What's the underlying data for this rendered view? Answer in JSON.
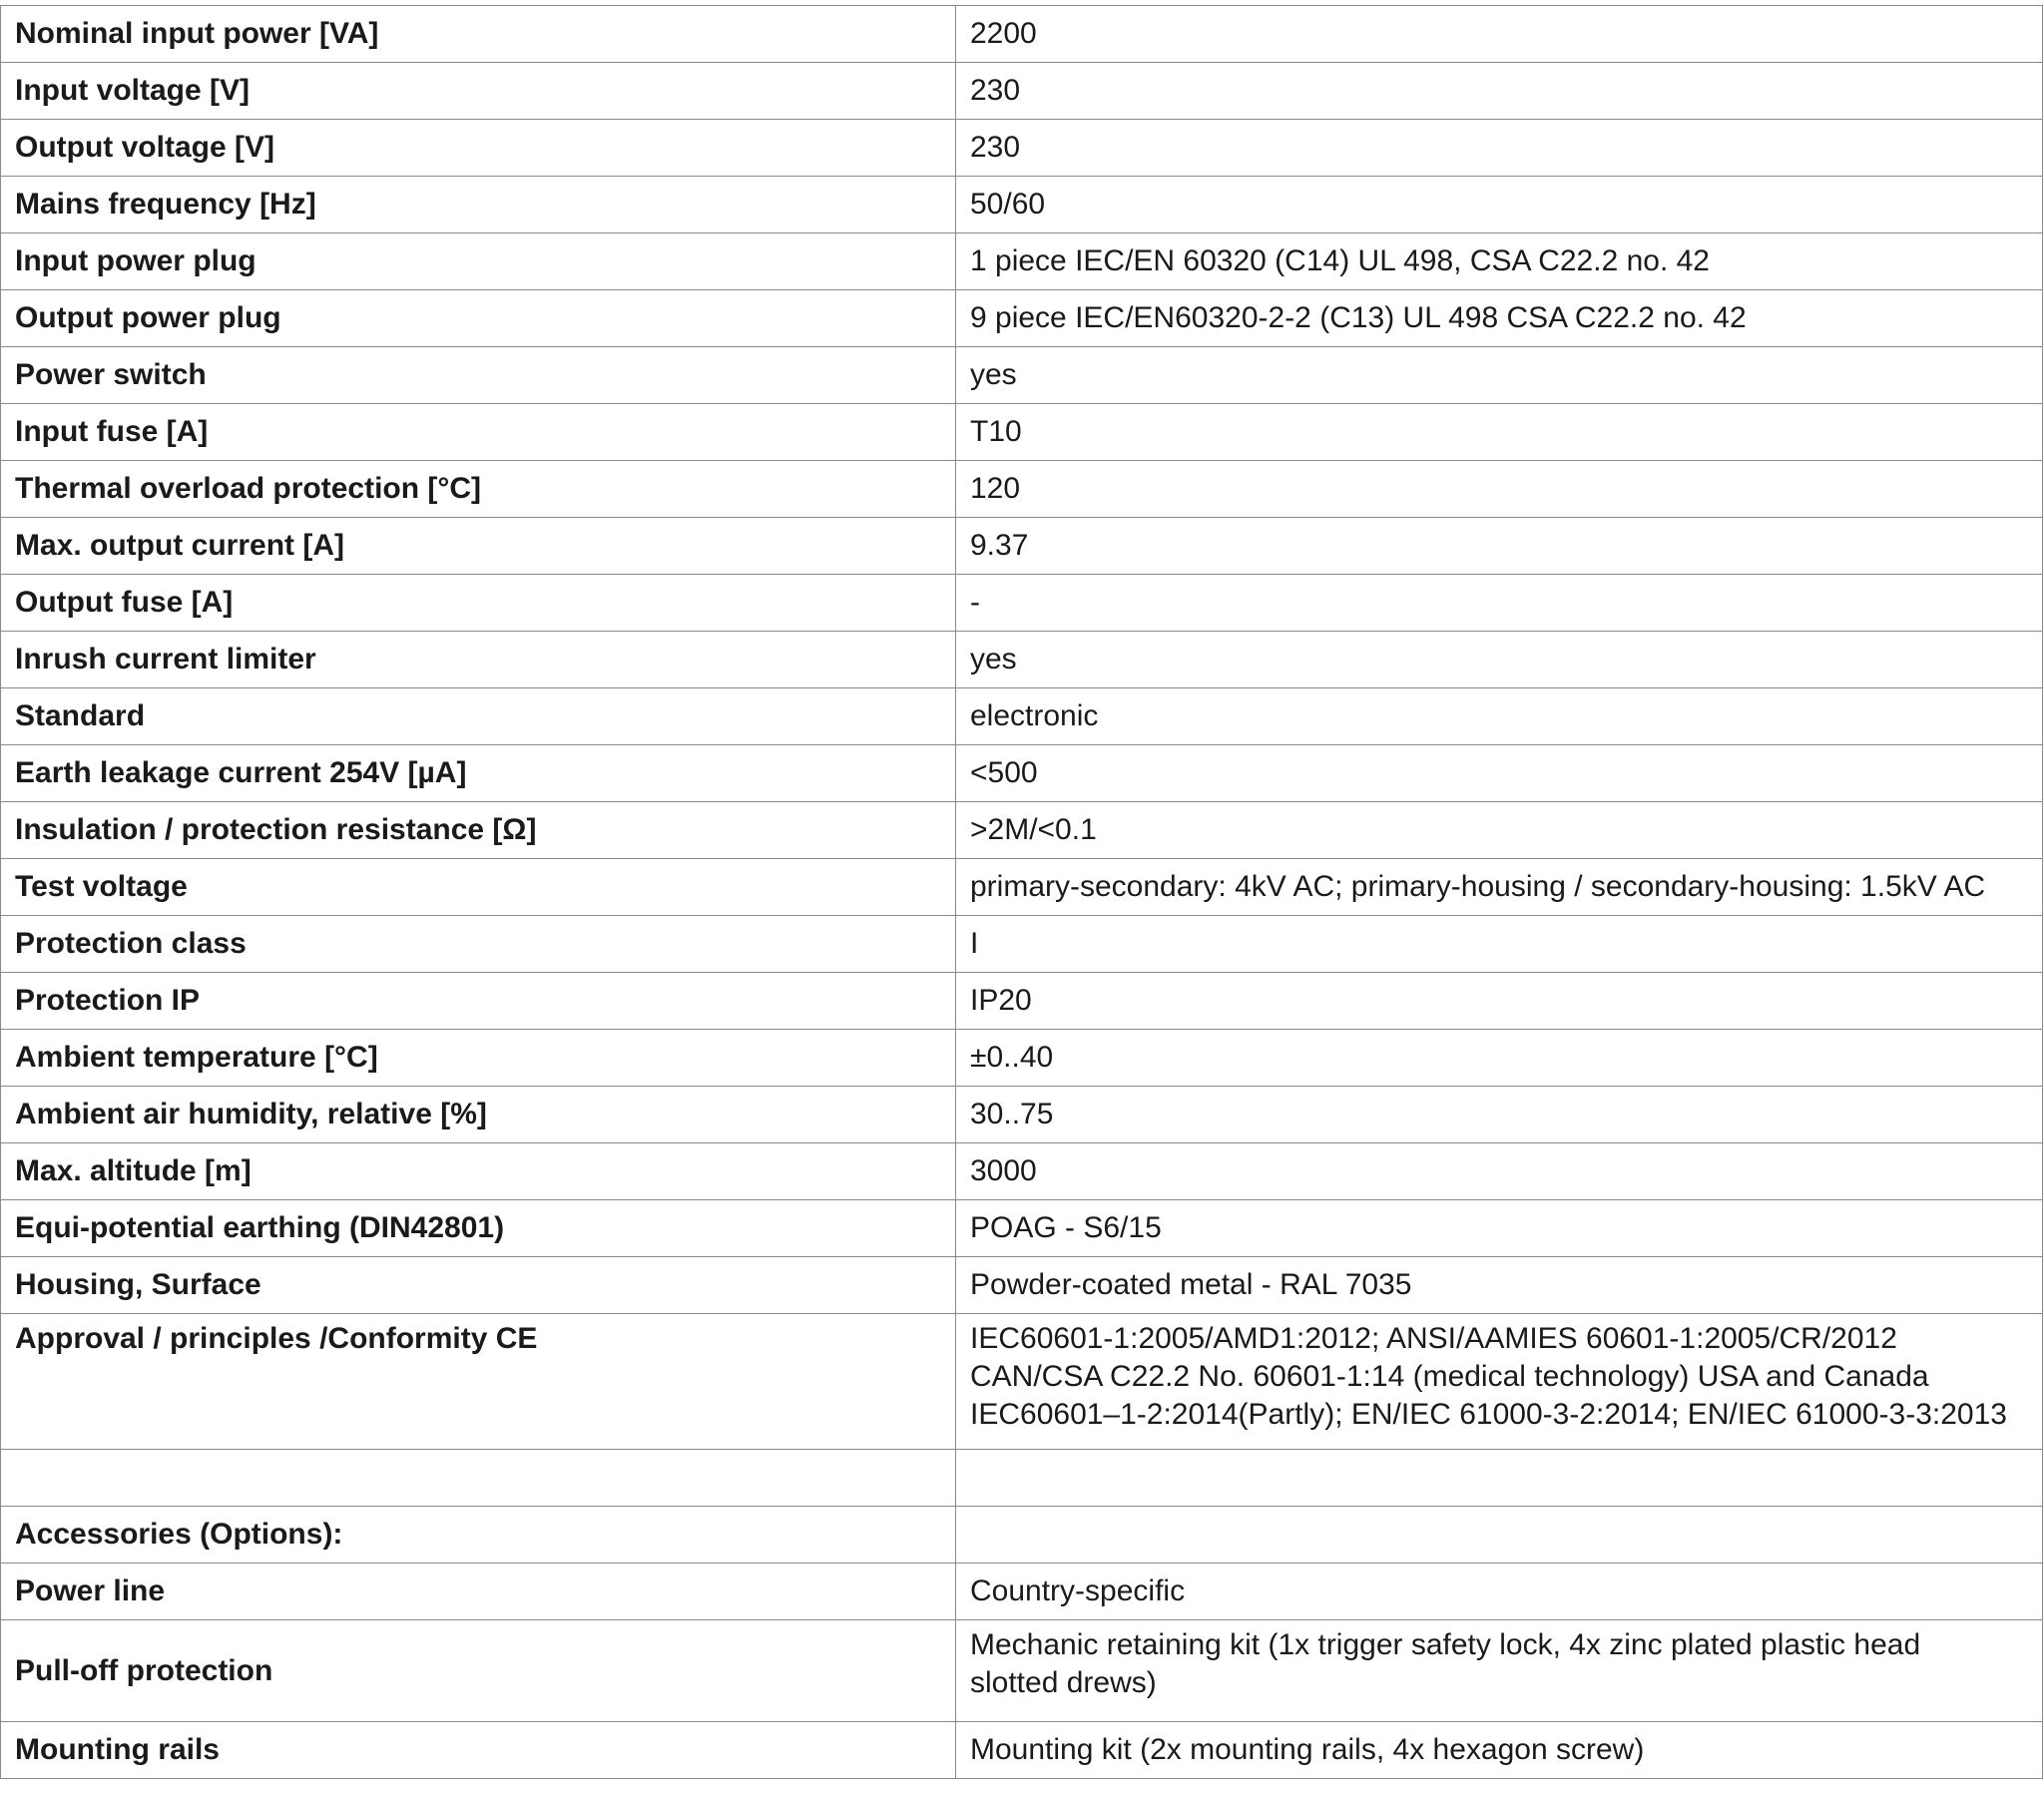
{
  "table": {
    "rows": [
      {
        "label": "Nominal input power [VA]",
        "value": [
          "2200"
        ]
      },
      {
        "label": "Input voltage [V]",
        "value": [
          "230"
        ]
      },
      {
        "label": "Output voltage [V]",
        "value": [
          "230"
        ]
      },
      {
        "label": "Mains frequency [Hz]",
        "value": [
          "50/60"
        ]
      },
      {
        "label": "Input power plug",
        "value": [
          "1 piece IEC/EN 60320 (C14) UL 498, CSA C22.2 no. 42"
        ]
      },
      {
        "label": "Output power plug",
        "value": [
          "9 piece IEC/EN60320-2-2 (C13) UL 498 CSA C22.2 no. 42"
        ]
      },
      {
        "label": "Power switch",
        "value": [
          "yes"
        ]
      },
      {
        "label": "Input fuse [A]",
        "value": [
          "T10"
        ]
      },
      {
        "label": "Thermal overload protection [°C]",
        "value": [
          "120"
        ]
      },
      {
        "label": "Max. output current [A]",
        "value": [
          "9.37"
        ]
      },
      {
        "label": "Output fuse [A]",
        "value": [
          "-"
        ]
      },
      {
        "label": "Inrush current limiter",
        "value": [
          "yes"
        ]
      },
      {
        "label": "Standard",
        "value": [
          "electronic"
        ]
      },
      {
        "label": "Earth leakage current 254V [µA]",
        "value": [
          "<500"
        ]
      },
      {
        "label": "Insulation / protection resistance [Ω]",
        "value": [
          ">2M/<0.1"
        ]
      },
      {
        "label": "Test voltage",
        "value": [
          "primary-secondary: 4kV AC; primary-housing / secondary-housing: 1.5kV AC"
        ]
      },
      {
        "label": "Protection class",
        "value": [
          "I"
        ]
      },
      {
        "label": "Protection IP",
        "value": [
          "IP20"
        ]
      },
      {
        "label": "Ambient temperature [°C]",
        "value": [
          "±0..40"
        ]
      },
      {
        "label": "Ambient air humidity, relative [%]",
        "value": [
          "30..75"
        ]
      },
      {
        "label": "Max. altitude [m]",
        "value": [
          "3000"
        ]
      },
      {
        "label": "Equi-potential earthing (DIN42801)",
        "value": [
          "POAG - S6/15"
        ]
      },
      {
        "label": "Housing, Surface",
        "value": [
          "Powder-coated metal - RAL 7035"
        ]
      },
      {
        "label": "Approval / principles /Conformity CE",
        "value": [
          "IEC60601-1:2005/AMD1:2012; ANSI/AAMIES 60601-1:2005/CR/2012",
          "CAN/CSA C22.2 No. 60601-1:14 (medical technology) USA and Canada",
          "IEC60601–1-2:2014(Partly); EN/IEC 61000-3-2:2014; EN/IEC 61000-3-3:2013"
        ]
      },
      {
        "label": "",
        "value": [
          ""
        ]
      },
      {
        "label": "Accessories (Options):",
        "value": [
          ""
        ]
      },
      {
        "label": "Power line",
        "value": [
          "Country-specific"
        ]
      },
      {
        "label": "Pull-off protection",
        "value": [
          "Mechanic retaining kit (1x trigger safety lock, 4x zinc plated plastic head",
          "slotted drews)"
        ]
      },
      {
        "label": "Mounting rails",
        "value": [
          "Mounting kit (2x mounting rails, 4x hexagon screw)"
        ]
      }
    ]
  }
}
